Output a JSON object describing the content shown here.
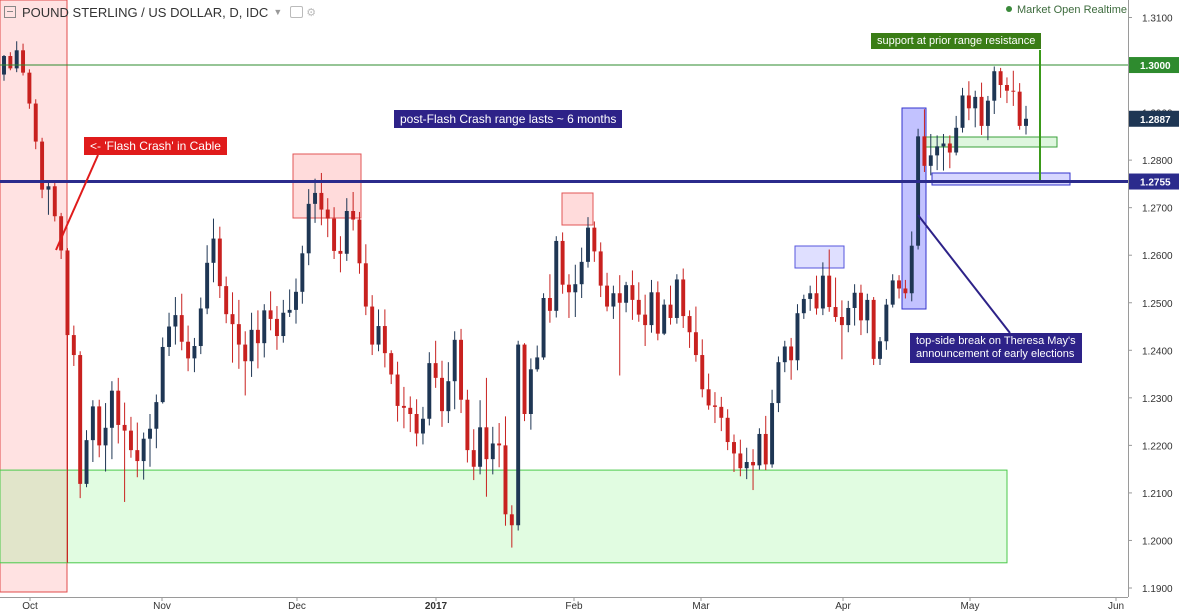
{
  "header": {
    "title": "POUND STERLING / US DOLLAR, D, IDC",
    "status": "Market Open",
    "realtime": "Realtime"
  },
  "annotations": {
    "flash_crash": "<- 'Flash Crash' in Cable",
    "range": "post-Flash Crash range lasts ~ 6 months",
    "support": "support at prior range resistance",
    "break_line1": "top-side break on Theresa May's",
    "break_line2": "announcement of early elections"
  },
  "colors": {
    "up": "#1e3654",
    "down": "#c8211f",
    "level_line": "#2b2b8c",
    "green_line": "#2e8b2e",
    "annotation_red": "#e01b1b",
    "annotation_navy": "#2d2288",
    "annotation_green": "#3a7d16"
  },
  "chart_data": {
    "type": "candlestick",
    "title": "POUND STERLING / US DOLLAR, D, IDC",
    "ylim": [
      1.1867,
      1.3136
    ],
    "y_ticks": [
      "1.3100",
      "1.3000",
      "1.2900",
      "1.2800",
      "1.2700",
      "1.2600",
      "1.2500",
      "1.2400",
      "1.2300",
      "1.2200",
      "1.2100",
      "1.2000",
      "1.1900"
    ],
    "x_ticks": [
      "Oct",
      "Nov",
      "Dec",
      "2017",
      "Feb",
      "Mar",
      "Apr",
      "May",
      "Jun"
    ],
    "price_labels": [
      "1.3000",
      "1.2887",
      "1.2755"
    ],
    "levels": {
      "resistance": 1.3,
      "range_top": 1.2755
    },
    "zones": {
      "support_zone": [
        1.1953,
        1.2148
      ]
    },
    "candles": [
      [
        1.298,
        1.3021,
        1.2967,
        1.3019
      ],
      [
        1.3019,
        1.3027,
        1.2989,
        1.2993
      ],
      [
        1.2993,
        1.305,
        1.2985,
        1.3031
      ],
      [
        1.3031,
        1.3045,
        1.2978,
        1.2984
      ],
      [
        1.2984,
        1.2991,
        1.2908,
        1.2919
      ],
      [
        1.2919,
        1.2928,
        1.2823,
        1.2839
      ],
      [
        1.2839,
        1.2847,
        1.272,
        1.2738
      ],
      [
        1.2738,
        1.2753,
        1.2685,
        1.2745
      ],
      [
        1.2745,
        1.2756,
        1.2671,
        1.2682
      ],
      [
        1.2682,
        1.2689,
        1.2592,
        1.261
      ],
      [
        1.261,
        1.2615,
        1.1953,
        1.2432
      ],
      [
        1.2432,
        1.2452,
        1.2367,
        1.239
      ],
      [
        1.239,
        1.2398,
        1.2089,
        1.2119
      ],
      [
        1.2119,
        1.2232,
        1.2112,
        1.2211
      ],
      [
        1.2211,
        1.2295,
        1.2165,
        1.2282
      ],
      [
        1.2282,
        1.2296,
        1.2175,
        1.22
      ],
      [
        1.22,
        1.2289,
        1.2145,
        1.2237
      ],
      [
        1.2237,
        1.2335,
        1.2171,
        1.2315
      ],
      [
        1.2315,
        1.2342,
        1.2204,
        1.2243
      ],
      [
        1.2243,
        1.229,
        1.2081,
        1.2231
      ],
      [
        1.2231,
        1.226,
        1.2174,
        1.219
      ],
      [
        1.219,
        1.2248,
        1.2133,
        1.2167
      ],
      [
        1.2167,
        1.2227,
        1.2128,
        1.2214
      ],
      [
        1.2214,
        1.2266,
        1.2155,
        1.2235
      ],
      [
        1.2235,
        1.2307,
        1.2194,
        1.2291
      ],
      [
        1.2291,
        1.2427,
        1.2288,
        1.2407
      ],
      [
        1.2407,
        1.2479,
        1.2388,
        1.245
      ],
      [
        1.245,
        1.2512,
        1.2412,
        1.2474
      ],
      [
        1.2474,
        1.2519,
        1.24,
        1.2418
      ],
      [
        1.2418,
        1.2452,
        1.2356,
        1.2383
      ],
      [
        1.2383,
        1.2426,
        1.2354,
        1.2409
      ],
      [
        1.2409,
        1.2511,
        1.2392,
        1.2488
      ],
      [
        1.2488,
        1.2621,
        1.2476,
        1.2584
      ],
      [
        1.2584,
        1.2677,
        1.2543,
        1.2635
      ],
      [
        1.2635,
        1.266,
        1.251,
        1.2535
      ],
      [
        1.2535,
        1.2555,
        1.2457,
        1.2476
      ],
      [
        1.2476,
        1.2522,
        1.2374,
        1.2455
      ],
      [
        1.2455,
        1.2506,
        1.2361,
        1.2412
      ],
      [
        1.2412,
        1.244,
        1.2305,
        1.2377
      ],
      [
        1.2377,
        1.2479,
        1.2344,
        1.2443
      ],
      [
        1.2443,
        1.2484,
        1.2362,
        1.2415
      ],
      [
        1.2415,
        1.2497,
        1.2385,
        1.2484
      ],
      [
        1.2484,
        1.2524,
        1.2442,
        1.2466
      ],
      [
        1.2466,
        1.2493,
        1.2401,
        1.243
      ],
      [
        1.243,
        1.2506,
        1.2416,
        1.2479
      ],
      [
        1.2479,
        1.2528,
        1.247,
        1.2485
      ],
      [
        1.2485,
        1.2551,
        1.2456,
        1.2523
      ],
      [
        1.2523,
        1.262,
        1.2498,
        1.2604
      ],
      [
        1.2604,
        1.2739,
        1.2579,
        1.2708
      ],
      [
        1.2708,
        1.2761,
        1.2668,
        1.2731
      ],
      [
        1.2731,
        1.2773,
        1.2663,
        1.2696
      ],
      [
        1.2696,
        1.272,
        1.2638,
        1.2677
      ],
      [
        1.2677,
        1.2701,
        1.2592,
        1.2609
      ],
      [
        1.2609,
        1.264,
        1.2564,
        1.2603
      ],
      [
        1.2603,
        1.272,
        1.2588,
        1.2693
      ],
      [
        1.2693,
        1.2733,
        1.2652,
        1.2675
      ],
      [
        1.2675,
        1.2691,
        1.2561,
        1.2583
      ],
      [
        1.2583,
        1.2623,
        1.2474,
        1.2492
      ],
      [
        1.2492,
        1.2516,
        1.239,
        1.2412
      ],
      [
        1.2412,
        1.2486,
        1.2398,
        1.2451
      ],
      [
        1.2451,
        1.2486,
        1.2364,
        1.2394
      ],
      [
        1.2394,
        1.24,
        1.2329,
        1.2349
      ],
      [
        1.2349,
        1.2376,
        1.225,
        1.2283
      ],
      [
        1.2283,
        1.2323,
        1.2236,
        1.2279
      ],
      [
        1.2279,
        1.2303,
        1.2228,
        1.2266
      ],
      [
        1.2266,
        1.2297,
        1.2198,
        1.2225
      ],
      [
        1.2225,
        1.2281,
        1.2202,
        1.2256
      ],
      [
        1.2256,
        1.2396,
        1.2242,
        1.2373
      ],
      [
        1.2373,
        1.242,
        1.2321,
        1.2342
      ],
      [
        1.2342,
        1.2378,
        1.2239,
        1.2272
      ],
      [
        1.2272,
        1.2375,
        1.2247,
        1.2335
      ],
      [
        1.2335,
        1.244,
        1.2276,
        1.2422
      ],
      [
        1.2422,
        1.2445,
        1.2268,
        1.2296
      ],
      [
        1.2296,
        1.2317,
        1.2164,
        1.219
      ],
      [
        1.219,
        1.2234,
        1.2127,
        1.2155
      ],
      [
        1.2155,
        1.2295,
        1.2139,
        1.2238
      ],
      [
        1.2238,
        1.2342,
        1.2092,
        1.2171
      ],
      [
        1.2171,
        1.2239,
        1.2139,
        1.2204
      ],
      [
        1.2204,
        1.2247,
        1.2154,
        1.22
      ],
      [
        1.22,
        1.2261,
        1.2031,
        1.2055
      ],
      [
        1.2055,
        1.2074,
        1.1985,
        1.2032
      ],
      [
        1.2032,
        1.242,
        1.2021,
        1.2412
      ],
      [
        1.2412,
        1.2415,
        1.2251,
        1.2266
      ],
      [
        1.2266,
        1.2383,
        1.2233,
        1.236
      ],
      [
        1.236,
        1.241,
        1.2355,
        1.2385
      ],
      [
        1.2385,
        1.252,
        1.238,
        1.251
      ],
      [
        1.251,
        1.256,
        1.2458,
        1.2483
      ],
      [
        1.2483,
        1.264,
        1.2469,
        1.263
      ],
      [
        1.263,
        1.2648,
        1.2519,
        1.2538
      ],
      [
        1.2538,
        1.256,
        1.2468,
        1.2522
      ],
      [
        1.2522,
        1.258,
        1.247,
        1.2539
      ],
      [
        1.2539,
        1.2616,
        1.251,
        1.2586
      ],
      [
        1.2586,
        1.268,
        1.2574,
        1.2658
      ],
      [
        1.2658,
        1.2671,
        1.2586,
        1.2608
      ],
      [
        1.2608,
        1.2627,
        1.2512,
        1.2536
      ],
      [
        1.2536,
        1.2563,
        1.2482,
        1.2492
      ],
      [
        1.2492,
        1.2536,
        1.2466,
        1.252
      ],
      [
        1.252,
        1.2558,
        1.2347,
        1.25
      ],
      [
        1.25,
        1.2544,
        1.248,
        1.2537
      ],
      [
        1.2537,
        1.2568,
        1.2464,
        1.2506
      ],
      [
        1.2506,
        1.2543,
        1.246,
        1.2475
      ],
      [
        1.2475,
        1.2517,
        1.2409,
        1.2453
      ],
      [
        1.2453,
        1.2548,
        1.2437,
        1.2522
      ],
      [
        1.2522,
        1.2545,
        1.2421,
        1.2435
      ],
      [
        1.2435,
        1.2507,
        1.2432,
        1.2496
      ],
      [
        1.2496,
        1.2536,
        1.2454,
        1.2468
      ],
      [
        1.2468,
        1.256,
        1.2456,
        1.2549
      ],
      [
        1.2549,
        1.2572,
        1.2447,
        1.2472
      ],
      [
        1.2472,
        1.2484,
        1.2405,
        1.2438
      ],
      [
        1.2438,
        1.2492,
        1.2376,
        1.239
      ],
      [
        1.239,
        1.2423,
        1.2301,
        1.2318
      ],
      [
        1.2318,
        1.2351,
        1.2275,
        1.2284
      ],
      [
        1.2284,
        1.2312,
        1.2247,
        1.2281
      ],
      [
        1.2281,
        1.2302,
        1.223,
        1.2258
      ],
      [
        1.2258,
        1.2276,
        1.219,
        1.2207
      ],
      [
        1.2207,
        1.2223,
        1.2144,
        1.2183
      ],
      [
        1.2183,
        1.2212,
        1.2135,
        1.2152
      ],
      [
        1.2152,
        1.2195,
        1.2129,
        1.2165
      ],
      [
        1.2165,
        1.2192,
        1.2106,
        1.2158
      ],
      [
        1.2158,
        1.2236,
        1.2149,
        1.2224
      ],
      [
        1.2224,
        1.2262,
        1.2148,
        1.216
      ],
      [
        1.216,
        1.2317,
        1.2153,
        1.2289
      ],
      [
        1.2289,
        1.2387,
        1.227,
        1.2375
      ],
      [
        1.2375,
        1.242,
        1.2354,
        1.2408
      ],
      [
        1.2408,
        1.2426,
        1.2338,
        1.2379
      ],
      [
        1.2379,
        1.2497,
        1.2358,
        1.2478
      ],
      [
        1.2478,
        1.2517,
        1.2466,
        1.2508
      ],
      [
        1.2508,
        1.2536,
        1.2483,
        1.252
      ],
      [
        1.252,
        1.2557,
        1.2475,
        1.2488
      ],
      [
        1.2488,
        1.2585,
        1.2474,
        1.2557
      ],
      [
        1.2557,
        1.2612,
        1.2481,
        1.2491
      ],
      [
        1.2491,
        1.2553,
        1.246,
        1.247
      ],
      [
        1.247,
        1.2505,
        1.2381,
        1.2453
      ],
      [
        1.2453,
        1.2504,
        1.2438,
        1.2489
      ],
      [
        1.2489,
        1.2539,
        1.2452,
        1.2521
      ],
      [
        1.2521,
        1.2538,
        1.2432,
        1.2463
      ],
      [
        1.2463,
        1.2519,
        1.2436,
        1.2506
      ],
      [
        1.2506,
        1.2512,
        1.2369,
        1.2382
      ],
      [
        1.2382,
        1.2428,
        1.2369,
        1.2419
      ],
      [
        1.2419,
        1.2508,
        1.2401,
        1.2496
      ],
      [
        1.2496,
        1.256,
        1.249,
        1.2547
      ],
      [
        1.2547,
        1.2558,
        1.2509,
        1.253
      ],
      [
        1.253,
        1.2548,
        1.2509,
        1.252
      ],
      [
        1.252,
        1.265,
        1.2503,
        1.262
      ],
      [
        1.262,
        1.2866,
        1.2612,
        1.285
      ],
      [
        1.285,
        1.2907,
        1.2775,
        1.2788
      ],
      [
        1.2788,
        1.2855,
        1.2768,
        1.281
      ],
      [
        1.281,
        1.2852,
        1.2779,
        1.2829
      ],
      [
        1.2829,
        1.2855,
        1.2778,
        1.2835
      ],
      [
        1.2835,
        1.2852,
        1.2783,
        1.2816
      ],
      [
        1.2816,
        1.2893,
        1.281,
        1.2868
      ],
      [
        1.2868,
        1.2952,
        1.2858,
        1.2936
      ],
      [
        1.2936,
        1.2966,
        1.2884,
        1.2909
      ],
      [
        1.2909,
        1.2946,
        1.2869,
        1.2933
      ],
      [
        1.2933,
        1.2963,
        1.2853,
        1.2872
      ],
      [
        1.2872,
        1.2935,
        1.2842,
        1.2925
      ],
      [
        1.2925,
        1.2997,
        1.2897,
        1.2987
      ],
      [
        1.2987,
        1.2994,
        1.2931,
        1.2958
      ],
      [
        1.2958,
        1.2974,
        1.292,
        1.2946
      ],
      [
        1.2946,
        1.2988,
        1.2914,
        1.2944
      ],
      [
        1.2944,
        1.2962,
        1.2864,
        1.2872
      ],
      [
        1.2872,
        1.2914,
        1.2854,
        1.2887
      ]
    ]
  }
}
